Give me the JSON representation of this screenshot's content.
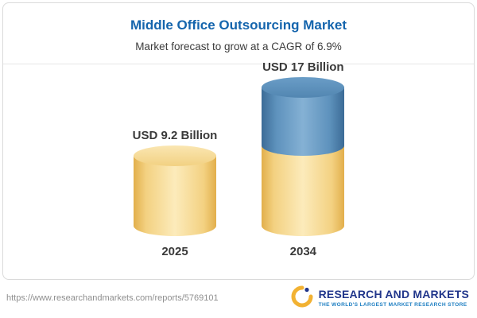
{
  "chart_data": {
    "type": "bar",
    "bar_style": "3d-cylinder-stacked",
    "title": "Middle Office Outsourcing Market",
    "subtitle": "Market forecast to grow at a CAGR of 6.9%",
    "cagr_percent": 6.9,
    "unit": "USD Billion",
    "categories": [
      "2025",
      "2034"
    ],
    "values": [
      9.2,
      17
    ],
    "value_labels": [
      "USD 9.2 Billion",
      "USD 17 Billion"
    ],
    "stacked_segments": [
      {
        "category": "2025",
        "base": 9.2,
        "growth": 0
      },
      {
        "category": "2034",
        "base": 9.2,
        "growth": 7.8
      }
    ],
    "colors": {
      "base_segment": "#f3d181",
      "growth_segment": "#5e92bd",
      "title_text": "#1565ad"
    },
    "legend": "none",
    "grid": "off"
  },
  "footer": {
    "url": "https://www.researchandmarkets.com/reports/5769101",
    "logo_title": "RESEARCH AND MARKETS",
    "logo_tagline": "THE WORLD'S LARGEST MARKET RESEARCH STORE"
  }
}
